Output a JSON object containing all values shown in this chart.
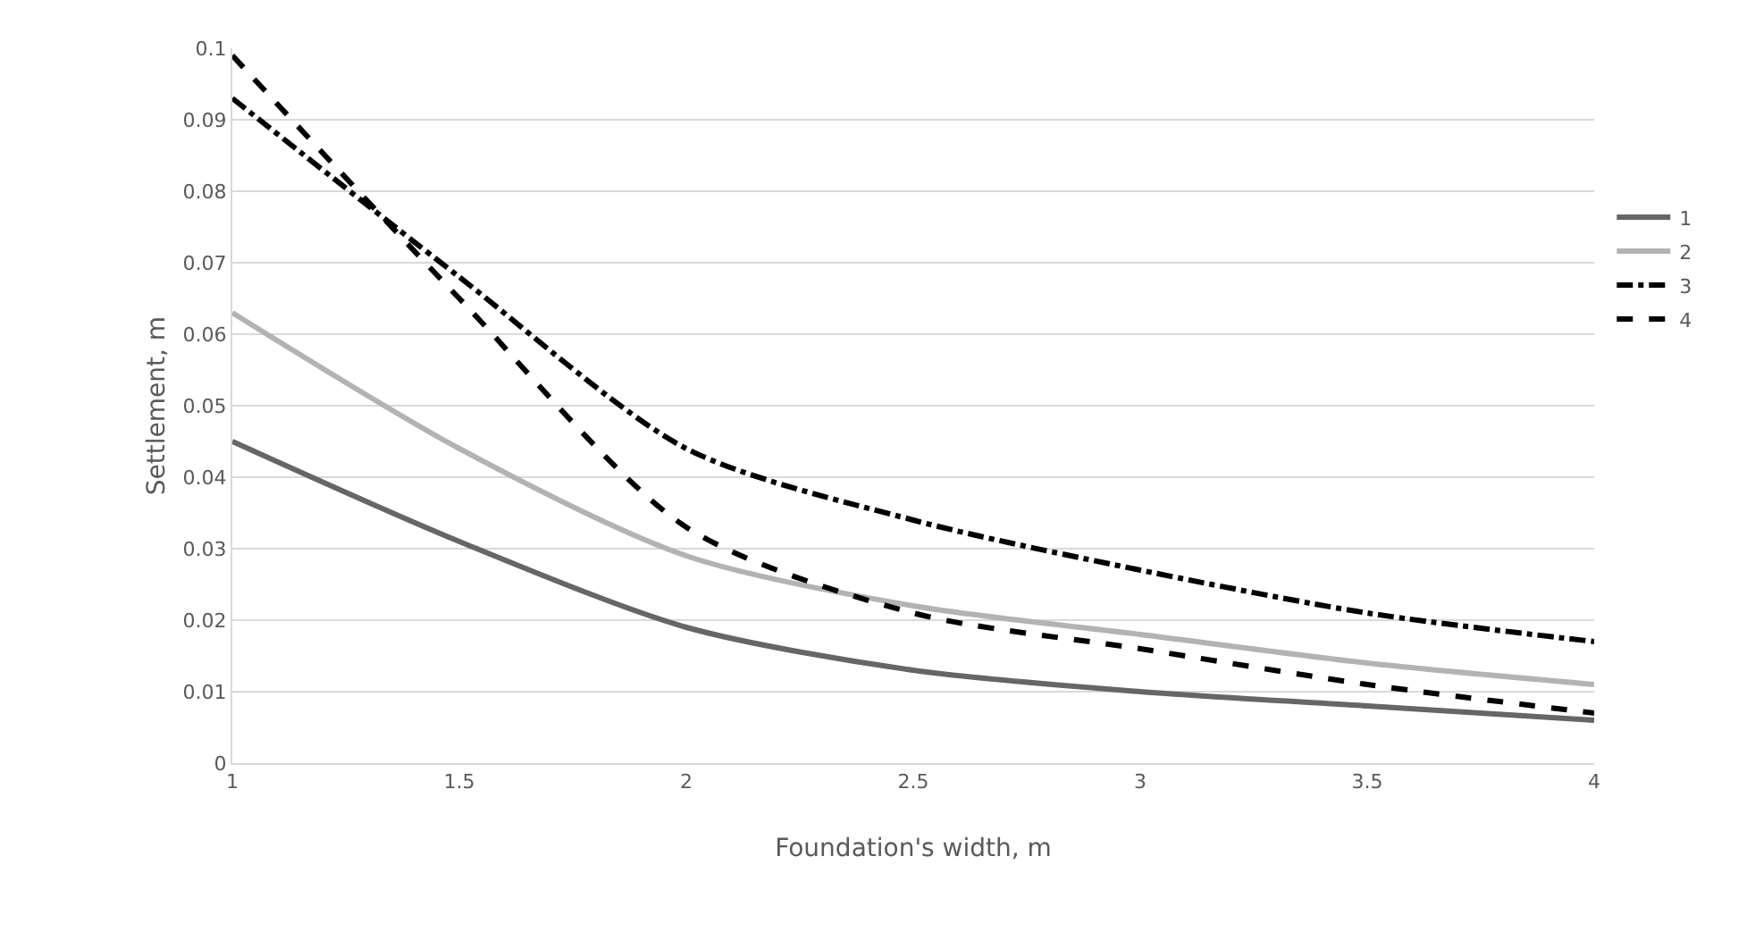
{
  "chart_data": {
    "type": "line",
    "xlabel": "Foundation's width, m",
    "ylabel": "Settlement, m",
    "x": [
      1,
      1.5,
      2,
      2.5,
      3,
      3.5,
      4
    ],
    "series": [
      {
        "name": "1",
        "color": "#666666",
        "line_style": "solid",
        "values": [
          0.045,
          0.031,
          0.019,
          0.013,
          0.01,
          0.008,
          0.006
        ]
      },
      {
        "name": "2",
        "color": "#b3b3b3",
        "line_style": "solid",
        "values": [
          0.063,
          0.044,
          0.029,
          0.022,
          0.018,
          0.014,
          0.011
        ]
      },
      {
        "name": "3",
        "color": "#000000",
        "line_style": "dashdot",
        "values": [
          0.093,
          0.068,
          0.044,
          0.034,
          0.027,
          0.021,
          0.017
        ]
      },
      {
        "name": "4",
        "color": "#000000",
        "line_style": "dashed",
        "values": [
          0.099,
          0.065,
          0.033,
          0.021,
          0.016,
          0.011,
          0.007
        ]
      }
    ],
    "xlim": [
      1,
      4
    ],
    "xticks": [
      1,
      1.5,
      2,
      2.5,
      3,
      3.5,
      4
    ],
    "ylim": [
      0,
      0.1
    ],
    "yticks": [
      0,
      0.01,
      0.02,
      0.03,
      0.04,
      0.05,
      0.06,
      0.07,
      0.08,
      0.09,
      0.1
    ],
    "grid": "y",
    "legend": "right",
    "marker": "none"
  }
}
